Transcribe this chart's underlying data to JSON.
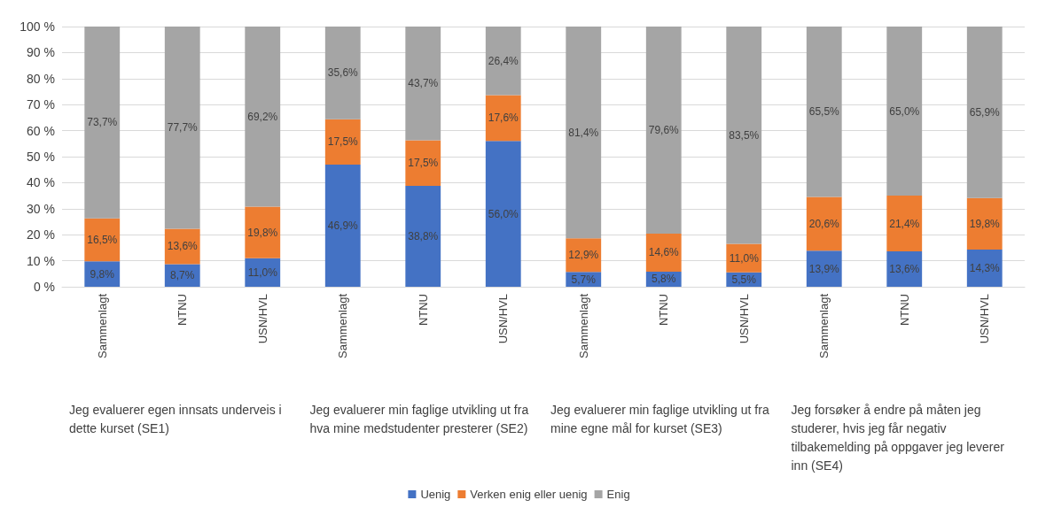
{
  "chart_data": {
    "type": "bar",
    "stacked": true,
    "categories": [
      "Sammenlagt",
      "NTNU",
      "USN/HVL",
      "Sammenlagt",
      "NTNU",
      "USN/HVL",
      "Sammenlagt",
      "NTNU",
      "USN/HVL",
      "Sammenlagt",
      "NTNU",
      "USN/HVL"
    ],
    "annotations": [
      "Jeg evaluerer egen innsats underveis i dette kurset (SE1)",
      "Jeg evaluerer min faglige utvikling ut fra hva mine medstudenter presterer (SE2)",
      "Jeg evaluerer min faglige utvikling ut fra mine egne mål for kurset (SE3)",
      "Jeg forsøker å endre på måten jeg studerer, hvis jeg får negativ tilbakemelding på oppgaver jeg leverer inn (SE4)"
    ],
    "series": [
      {
        "name": "Uenig",
        "color": "#4472c4",
        "values": [
          9.8,
          8.7,
          11.0,
          46.9,
          38.8,
          56.0,
          5.7,
          5.8,
          5.5,
          13.9,
          13.6,
          14.3
        ],
        "value_labels": [
          "9,8%",
          "8,7%",
          "11,0%",
          "46,9%",
          "38,8%",
          "56,0%",
          "5,7%",
          "5,8%",
          "5,5%",
          "13,9%",
          "13,6%",
          "14,3%"
        ]
      },
      {
        "name": "Verken enig eller uenig",
        "color": "#ed7d31",
        "values": [
          16.5,
          13.6,
          19.8,
          17.5,
          17.5,
          17.6,
          12.9,
          14.6,
          11.0,
          20.6,
          21.4,
          19.8
        ],
        "value_labels": [
          "16,5%",
          "13,6%",
          "19,8%",
          "17,5%",
          "17,5%",
          "17,6%",
          "12,9%",
          "14,6%",
          "11,0%",
          "20,6%",
          "21,4%",
          "19,8%"
        ]
      },
      {
        "name": "Enig",
        "color": "#a5a5a5",
        "values": [
          73.7,
          77.7,
          69.2,
          35.6,
          43.7,
          26.4,
          81.4,
          79.6,
          83.5,
          65.5,
          65.0,
          65.9
        ],
        "value_labels": [
          "73,7%",
          "77,7%",
          "69,2%",
          "35,6%",
          "43,7%",
          "26,4%",
          "81,4%",
          "79,6%",
          "83,5%",
          "65,5%",
          "65,0%",
          "65,9%"
        ]
      }
    ],
    "ylim": [
      0,
      100
    ],
    "yticks": [
      {
        "value": 0,
        "label": "0 %"
      },
      {
        "value": 10,
        "label": "10 %"
      },
      {
        "value": 20,
        "label": "20 %"
      },
      {
        "value": 30,
        "label": "30 %"
      },
      {
        "value": 40,
        "label": "40 %"
      },
      {
        "value": 50,
        "label": "50 %"
      },
      {
        "value": 60,
        "label": "60 %"
      },
      {
        "value": 70,
        "label": "70 %"
      },
      {
        "value": 80,
        "label": "80 %"
      },
      {
        "value": 90,
        "label": "90 %"
      },
      {
        "value": 100,
        "label": "100 %"
      }
    ],
    "grid": "y",
    "legend": "bottom"
  }
}
